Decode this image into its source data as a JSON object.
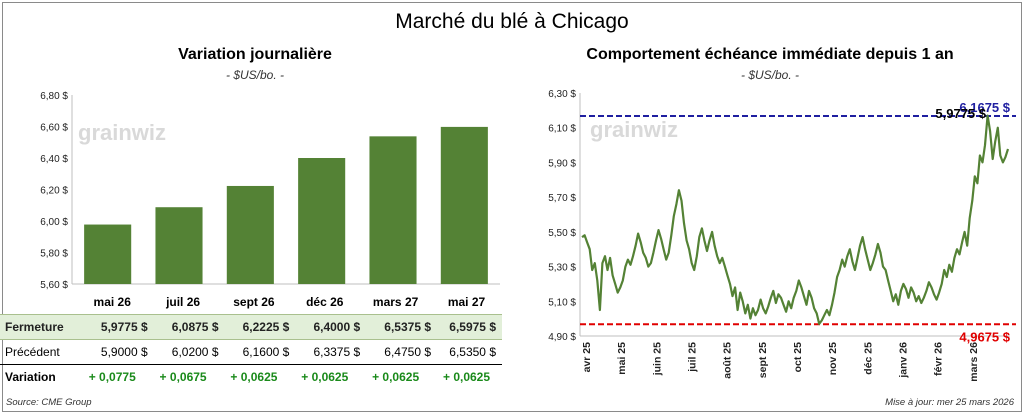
{
  "title": "Marché du blé à Chicago",
  "source": "Source: CME Group",
  "updated": "Mise à jour: mer 25 mars 2026",
  "watermark": "grainwiz",
  "colors": {
    "bar": "#548235",
    "line": "#548235",
    "high": "#1f1fa0",
    "low": "#e00000",
    "variation": "#1a8a1a"
  },
  "chart_data": [
    {
      "type": "bar",
      "title": "Variation journalière",
      "subtitle": "- $US/bo. -",
      "categories": [
        "mai 26",
        "juil 26",
        "sept 26",
        "déc 26",
        "mars 27",
        "mai 27"
      ],
      "values": [
        5.9775,
        6.0875,
        6.2225,
        6.4,
        6.5375,
        6.5975
      ],
      "ylim": [
        5.6,
        6.8
      ],
      "yticks": [
        "5,60 $",
        "5,80 $",
        "6,00 $",
        "6,20 $",
        "6,40 $",
        "6,60 $",
        "6,80 $"
      ],
      "grid": false
    },
    {
      "type": "line",
      "title": "Comportement échéance immédiate depuis 1 an",
      "subtitle": "- $US/bo. -",
      "ylim": [
        4.9,
        6.3
      ],
      "yticks": [
        "4,90 $",
        "5,10 $",
        "5,30 $",
        "5,50 $",
        "5,70 $",
        "5,90 $",
        "6,10 $",
        "6,30 $"
      ],
      "xticks": [
        "avr 25",
        "mai 25",
        "juin 25",
        "juil 25",
        "août 25",
        "sept 25",
        "oct 25",
        "nov 25",
        "déc 25",
        "janv 26",
        "févr 26",
        "mars 26"
      ],
      "high_label": "6,1675 $",
      "low_label": "4,9675 $",
      "last_label": "5,9775 $",
      "high": 6.1675,
      "low": 4.9675,
      "values": [
        5.47,
        5.48,
        5.44,
        5.4,
        5.28,
        5.32,
        5.22,
        5.05,
        5.32,
        5.36,
        5.28,
        5.35,
        5.25,
        5.2,
        5.15,
        5.18,
        5.22,
        5.3,
        5.34,
        5.31,
        5.36,
        5.42,
        5.49,
        5.44,
        5.38,
        5.35,
        5.3,
        5.32,
        5.38,
        5.45,
        5.51,
        5.46,
        5.4,
        5.34,
        5.38,
        5.48,
        5.59,
        5.66,
        5.74,
        5.68,
        5.55,
        5.45,
        5.4,
        5.32,
        5.28,
        5.36,
        5.47,
        5.52,
        5.45,
        5.39,
        5.45,
        5.5,
        5.42,
        5.36,
        5.32,
        5.35,
        5.3,
        5.25,
        5.2,
        5.13,
        5.18,
        5.05,
        5.15,
        5.1,
        5.03,
        5.08,
        5.0,
        5.06,
        5.02,
        5.05,
        5.11,
        5.06,
        5.03,
        5.07,
        5.12,
        5.16,
        5.09,
        5.14,
        5.12,
        5.08,
        5.04,
        5.1,
        5.06,
        5.12,
        5.16,
        5.22,
        5.18,
        5.13,
        5.08,
        5.16,
        5.12,
        5.06,
        5.03,
        4.97,
        4.99,
        5.02,
        5.05,
        5.02,
        5.08,
        5.15,
        5.24,
        5.28,
        5.34,
        5.3,
        5.36,
        5.4,
        5.33,
        5.28,
        5.35,
        5.42,
        5.47,
        5.4,
        5.34,
        5.28,
        5.32,
        5.37,
        5.43,
        5.38,
        5.3,
        5.28,
        5.22,
        5.16,
        5.1,
        5.14,
        5.08,
        5.16,
        5.2,
        5.17,
        5.12,
        5.18,
        5.15,
        5.1,
        5.13,
        5.09,
        5.12,
        5.16,
        5.21,
        5.18,
        5.14,
        5.11,
        5.15,
        5.2,
        5.28,
        5.24,
        5.31,
        5.27,
        5.35,
        5.4,
        5.37,
        5.44,
        5.5,
        5.42,
        5.58,
        5.68,
        5.82,
        5.78,
        5.94,
        5.9,
        6.0,
        6.17,
        6.08,
        5.92,
        6.02,
        6.1,
        5.94,
        5.9,
        5.93,
        5.9775
      ]
    }
  ],
  "table": {
    "rows": [
      {
        "label": "Fermeture",
        "values": [
          "5,9775",
          "6,0875",
          "6,2225",
          "6,4000",
          "6,5375",
          "6,5975"
        ],
        "unit": "$"
      },
      {
        "label": "Précédent",
        "values": [
          "5,9000",
          "6,0200",
          "6,1600",
          "6,3375",
          "6,4750",
          "6,5350"
        ],
        "unit": "$"
      },
      {
        "label": "Variation",
        "values": [
          "+ 0,0775",
          "+ 0,0675",
          "+ 0,0625",
          "+ 0,0625",
          "+ 0,0625",
          "+ 0,0625"
        ]
      }
    ]
  }
}
